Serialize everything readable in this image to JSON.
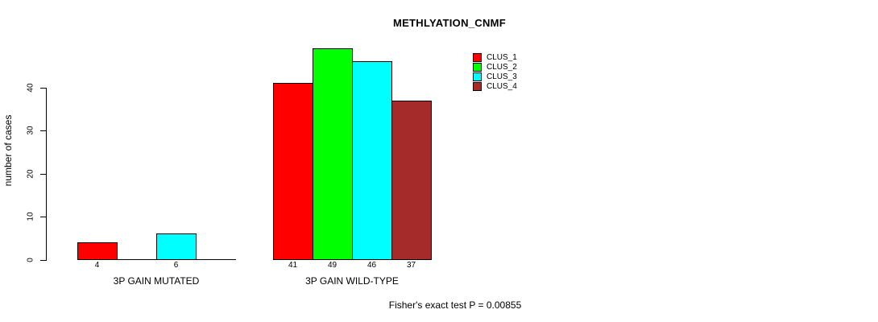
{
  "chart_data": {
    "type": "bar",
    "title": "METHLYATION_CNMF",
    "ylabel": "number of cases",
    "xlabel": "",
    "yticks": [
      0,
      10,
      20,
      30,
      40
    ],
    "ylim": [
      0,
      49
    ],
    "grid": false,
    "legend_position": "top-right",
    "categories": [
      "3P GAIN MUTATED",
      "3P GAIN WILD-TYPE"
    ],
    "series": [
      {
        "name": "CLUS_1",
        "color": "#FF0000",
        "values": [
          4,
          41
        ]
      },
      {
        "name": "CLUS_2",
        "color": "#00FF00",
        "values": [
          0,
          49
        ]
      },
      {
        "name": "CLUS_3",
        "color": "#00FFFF",
        "values": [
          6,
          46
        ]
      },
      {
        "name": "CLUS_4",
        "color": "#A52A2A",
        "values": [
          0,
          37
        ]
      }
    ],
    "bar_value_labels": [
      "4",
      "6",
      "41",
      "49",
      "46",
      "37"
    ],
    "zero_bars_drawn_as_flat_lines": true,
    "annotation": "Fisher's exact test P = 0.00855",
    "axis_color": "#000000",
    "background_color": "#FFFFFF"
  }
}
